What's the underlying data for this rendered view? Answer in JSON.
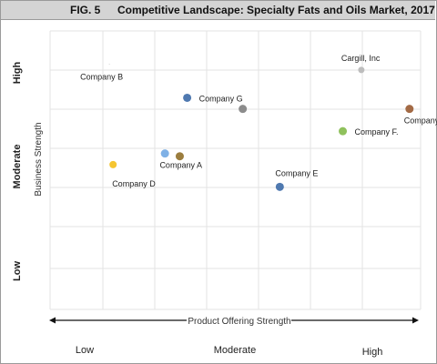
{
  "header": {
    "figure_label": "FIG. 5",
    "title": "Competitive Landscape: Specialty Fats and Oils Market, 2017"
  },
  "chart_data": {
    "type": "scatter",
    "title": "Competitive Landscape: Specialty Fats and Oils Market, 2017",
    "xlabel": "Product Offering Strength",
    "ylabel": "Business Strength",
    "xlim": [
      0,
      10
    ],
    "ylim": [
      0,
      10
    ],
    "grid": true,
    "x_tick_labels": [
      "Low",
      "Moderate",
      "High"
    ],
    "y_tick_labels": [
      "Low",
      "Moderate",
      "High"
    ],
    "points": [
      {
        "label": "Company B",
        "x": 1.6,
        "y": 8.8,
        "color": "#9a9a9a",
        "size": 0.4
      },
      {
        "label": "Cargill, Inc",
        "x": 8.4,
        "y": 8.6,
        "color": "#bdbdbd",
        "size": 3.5
      },
      {
        "label": "Company G",
        "x": 3.7,
        "y": 7.6,
        "color": "#4f79b0",
        "size": 4.5
      },
      {
        "label": "",
        "x": 5.2,
        "y": 7.2,
        "color": "#8c8c8c",
        "size": 4.5
      },
      {
        "label": "Company H",
        "x": 9.7,
        "y": 7.2,
        "color": "#a36a45",
        "size": 4.5
      },
      {
        "label": "Company F.",
        "x": 7.9,
        "y": 6.4,
        "color": "#8fc15c",
        "size": 4.5
      },
      {
        "label": "Company A",
        "x": 3.5,
        "y": 5.5,
        "color": "#9b7d3e",
        "size": 4.5
      },
      {
        "label": "",
        "x": 3.1,
        "y": 5.6,
        "color": "#7fb1e6",
        "size": 4.5
      },
      {
        "label": "Company D",
        "x": 1.7,
        "y": 5.2,
        "color": "#f5c531",
        "size": 4
      },
      {
        "label": "Company E",
        "x": 6.2,
        "y": 4.4,
        "color": "#4f79b0",
        "size": 4.5
      }
    ]
  }
}
